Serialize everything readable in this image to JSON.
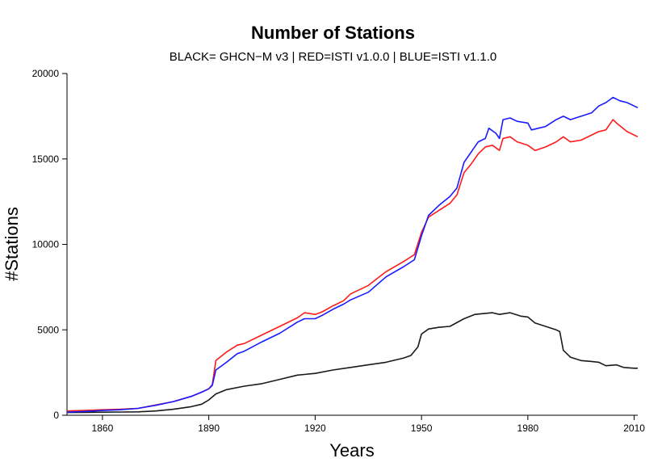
{
  "chart_data": {
    "type": "line",
    "title": "Number of Stations",
    "subtitle": "BLACK= GHCN−M v3 | RED=ISTI v1.0.0 | BLUE=ISTI v1.1.0",
    "xlabel": "Years",
    "ylabel": "#Stations",
    "xlim": [
      1850,
      2011
    ],
    "ylim": [
      0,
      20000
    ],
    "x_ticks": [
      1860,
      1890,
      1920,
      1950,
      1980,
      2010
    ],
    "y_ticks": [
      0,
      5000,
      10000,
      15000,
      20000
    ],
    "grid": false,
    "legend": "none",
    "series": [
      {
        "name": "GHCN-M v3",
        "color": "#1a1a1a",
        "points": [
          [
            1850,
            160
          ],
          [
            1855,
            170
          ],
          [
            1860,
            180
          ],
          [
            1865,
            190
          ],
          [
            1870,
            200
          ],
          [
            1875,
            250
          ],
          [
            1880,
            350
          ],
          [
            1885,
            500
          ],
          [
            1888,
            650
          ],
          [
            1890,
            900
          ],
          [
            1892,
            1250
          ],
          [
            1895,
            1500
          ],
          [
            1900,
            1700
          ],
          [
            1905,
            1850
          ],
          [
            1910,
            2100
          ],
          [
            1915,
            2350
          ],
          [
            1920,
            2450
          ],
          [
            1925,
            2650
          ],
          [
            1930,
            2800
          ],
          [
            1935,
            2950
          ],
          [
            1940,
            3100
          ],
          [
            1945,
            3350
          ],
          [
            1947,
            3500
          ],
          [
            1949,
            4000
          ],
          [
            1950,
            4750
          ],
          [
            1952,
            5050
          ],
          [
            1955,
            5150
          ],
          [
            1958,
            5200
          ],
          [
            1962,
            5650
          ],
          [
            1965,
            5900
          ],
          [
            1970,
            6000
          ],
          [
            1972,
            5900
          ],
          [
            1975,
            6000
          ],
          [
            1978,
            5800
          ],
          [
            1980,
            5750
          ],
          [
            1982,
            5400
          ],
          [
            1985,
            5200
          ],
          [
            1988,
            5000
          ],
          [
            1989,
            4900
          ],
          [
            1990,
            3800
          ],
          [
            1992,
            3400
          ],
          [
            1995,
            3200
          ],
          [
            1998,
            3150
          ],
          [
            2000,
            3100
          ],
          [
            2002,
            2900
          ],
          [
            2005,
            2950
          ],
          [
            2007,
            2800
          ],
          [
            2010,
            2750
          ],
          [
            2011,
            2750
          ]
        ]
      },
      {
        "name": "ISTI v1.0.0",
        "color": "#ff1a1a",
        "points": [
          [
            1850,
            250
          ],
          [
            1855,
            280
          ],
          [
            1860,
            320
          ],
          [
            1865,
            350
          ],
          [
            1870,
            400
          ],
          [
            1875,
            600
          ],
          [
            1880,
            800
          ],
          [
            1885,
            1100
          ],
          [
            1888,
            1350
          ],
          [
            1890,
            1550
          ],
          [
            1891,
            1800
          ],
          [
            1892,
            3200
          ],
          [
            1895,
            3700
          ],
          [
            1898,
            4100
          ],
          [
            1900,
            4200
          ],
          [
            1905,
            4700
          ],
          [
            1910,
            5200
          ],
          [
            1915,
            5700
          ],
          [
            1917,
            6000
          ],
          [
            1920,
            5900
          ],
          [
            1922,
            6050
          ],
          [
            1925,
            6400
          ],
          [
            1928,
            6700
          ],
          [
            1930,
            7100
          ],
          [
            1935,
            7600
          ],
          [
            1940,
            8400
          ],
          [
            1945,
            9000
          ],
          [
            1948,
            9400
          ],
          [
            1950,
            10700
          ],
          [
            1952,
            11600
          ],
          [
            1955,
            12000
          ],
          [
            1958,
            12400
          ],
          [
            1960,
            12900
          ],
          [
            1962,
            14200
          ],
          [
            1964,
            14700
          ],
          [
            1966,
            15300
          ],
          [
            1968,
            15700
          ],
          [
            1970,
            15800
          ],
          [
            1972,
            15500
          ],
          [
            1973,
            16200
          ],
          [
            1975,
            16300
          ],
          [
            1977,
            16000
          ],
          [
            1980,
            15800
          ],
          [
            1982,
            15500
          ],
          [
            1985,
            15700
          ],
          [
            1988,
            16000
          ],
          [
            1990,
            16300
          ],
          [
            1992,
            16000
          ],
          [
            1995,
            16100
          ],
          [
            1998,
            16400
          ],
          [
            2000,
            16600
          ],
          [
            2002,
            16700
          ],
          [
            2004,
            17300
          ],
          [
            2005,
            17100
          ],
          [
            2008,
            16600
          ],
          [
            2011,
            16300
          ]
        ]
      },
      {
        "name": "ISTI v1.1.0",
        "color": "#1a1aff",
        "points": [
          [
            1850,
            180
          ],
          [
            1855,
            220
          ],
          [
            1860,
            280
          ],
          [
            1865,
            320
          ],
          [
            1870,
            400
          ],
          [
            1875,
            580
          ],
          [
            1880,
            800
          ],
          [
            1885,
            1100
          ],
          [
            1888,
            1350
          ],
          [
            1890,
            1550
          ],
          [
            1891,
            1750
          ],
          [
            1892,
            2650
          ],
          [
            1895,
            3100
          ],
          [
            1898,
            3600
          ],
          [
            1900,
            3750
          ],
          [
            1905,
            4300
          ],
          [
            1910,
            4800
          ],
          [
            1915,
            5450
          ],
          [
            1917,
            5650
          ],
          [
            1920,
            5650
          ],
          [
            1922,
            5850
          ],
          [
            1925,
            6200
          ],
          [
            1928,
            6500
          ],
          [
            1930,
            6750
          ],
          [
            1935,
            7200
          ],
          [
            1940,
            8100
          ],
          [
            1945,
            8700
          ],
          [
            1948,
            9100
          ],
          [
            1950,
            10500
          ],
          [
            1952,
            11700
          ],
          [
            1955,
            12300
          ],
          [
            1958,
            12800
          ],
          [
            1960,
            13300
          ],
          [
            1962,
            14800
          ],
          [
            1964,
            15400
          ],
          [
            1966,
            16000
          ],
          [
            1968,
            16200
          ],
          [
            1969,
            16800
          ],
          [
            1971,
            16500
          ],
          [
            1972,
            16200
          ],
          [
            1973,
            17300
          ],
          [
            1975,
            17400
          ],
          [
            1977,
            17200
          ],
          [
            1980,
            17100
          ],
          [
            1981,
            16700
          ],
          [
            1983,
            16800
          ],
          [
            1985,
            16900
          ],
          [
            1988,
            17300
          ],
          [
            1990,
            17500
          ],
          [
            1992,
            17300
          ],
          [
            1995,
            17500
          ],
          [
            1998,
            17700
          ],
          [
            2000,
            18100
          ],
          [
            2002,
            18300
          ],
          [
            2004,
            18600
          ],
          [
            2006,
            18400
          ],
          [
            2008,
            18300
          ],
          [
            2011,
            18000
          ]
        ]
      }
    ]
  }
}
